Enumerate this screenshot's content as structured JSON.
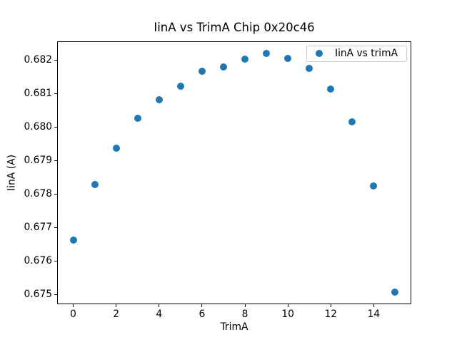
{
  "figure_background": "#ffffff",
  "chart_data": {
    "type": "scatter",
    "title": "IinA vs TrimA Chip 0x20c46",
    "xlabel": "TrimA",
    "ylabel": "IinA (A)",
    "legend": {
      "label": "IinA vs trimA",
      "position": "upper right",
      "marker": "dot"
    },
    "marker_color": "#1f77b4",
    "axis_color": "#000000",
    "legend_border_color": "#cccccc",
    "grid": false,
    "x": [
      0,
      1,
      2,
      3,
      4,
      5,
      6,
      7,
      8,
      9,
      10,
      11,
      12,
      13,
      14,
      15
    ],
    "y": [
      0.67663,
      0.6783,
      0.67938,
      0.68028,
      0.68083,
      0.68124,
      0.68167,
      0.6818,
      0.68203,
      0.68222,
      0.68206,
      0.68177,
      0.68115,
      0.68017,
      0.67825,
      0.67507
    ],
    "xlim": [
      -0.75,
      15.75
    ],
    "ylim": [
      0.67471,
      0.68258
    ],
    "x_ticks": [
      0,
      2,
      4,
      6,
      8,
      10,
      12,
      14
    ],
    "x_tick_labels": [
      "0",
      "2",
      "4",
      "6",
      "8",
      "10",
      "12",
      "14"
    ],
    "y_ticks": [
      0.675,
      0.676,
      0.677,
      0.678,
      0.679,
      0.68,
      0.681,
      0.682
    ],
    "y_tick_labels": [
      "0.675",
      "0.676",
      "0.677",
      "0.678",
      "0.679",
      "0.680",
      "0.681",
      "0.682"
    ]
  }
}
